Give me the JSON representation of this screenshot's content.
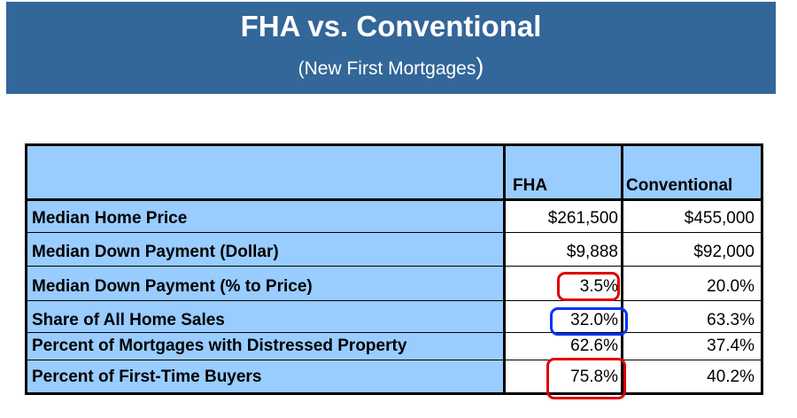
{
  "header": {
    "title": "FHA vs. Conventional",
    "subtitle": "(New First Mortgages",
    "subtitle_close": ")"
  },
  "table": {
    "columns": [
      "FHA",
      "Conventional"
    ],
    "rows": [
      {
        "label": "Median Home Price",
        "fha": "$261,500",
        "conventional": "$455,000"
      },
      {
        "label": "Median Down Payment (Dollar)",
        "fha": "$9,888",
        "conventional": "$92,000"
      },
      {
        "label": "Median Down Payment (% to Price)",
        "fha": "3.5%",
        "conventional": "20.0%"
      },
      {
        "label": "Share of All Home Sales",
        "fha": "32.0%",
        "conventional": "63.3%"
      },
      {
        "label": "Percent of Mortgages with Distressed Property",
        "fha": "62.6%",
        "conventional": "37.4%"
      },
      {
        "label": "Percent of First-Time Buyers",
        "fha": "75.8%",
        "conventional": "40.2%"
      }
    ]
  },
  "highlights": {
    "red": "#e00000",
    "blue": "#0033ff"
  }
}
